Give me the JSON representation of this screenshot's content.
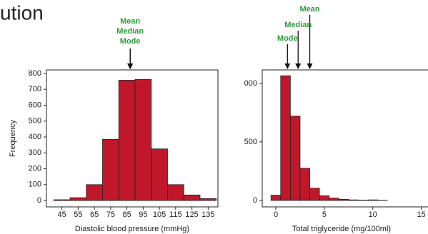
{
  "title": "ution",
  "chart_data": [
    {
      "type": "histogram",
      "bins": [
        40,
        50,
        60,
        70,
        80,
        90,
        100,
        110,
        120,
        130,
        140
      ],
      "values": [
        5,
        18,
        100,
        385,
        757,
        762,
        325,
        100,
        35,
        12
      ],
      "color": "#c0182a",
      "xlabel": "Diastolic blood pressure (mmHg)",
      "ylabel": "Frequency",
      "xlim": [
        35.5,
        141
      ],
      "ylim": [
        -40,
        822
      ],
      "xticks": [
        45,
        55,
        65,
        75,
        85,
        95,
        105,
        115,
        125,
        135
      ],
      "yticks": [
        0,
        100,
        200,
        300,
        400,
        500,
        600,
        700,
        800
      ],
      "annotations": [
        {
          "text": "Mean",
          "x": 87
        },
        {
          "text": "Median",
          "x": 87
        },
        {
          "text": "Mode",
          "x": 87
        }
      ]
    },
    {
      "type": "histogram",
      "bins": [
        -0.5,
        0.5,
        1.5,
        2.5,
        3.5,
        4.5,
        5.5,
        6.5,
        7.5,
        8.5,
        9.5,
        10.5,
        11.5
      ],
      "values": [
        45,
        1065,
        720,
        275,
        105,
        40,
        20,
        10,
        5,
        3,
        5,
        2
      ],
      "color": "#c0182a",
      "xlabel": "Total triglyceride (mg/100ml)",
      "xlim": [
        -1.4,
        16.5
      ],
      "ylim": [
        -55,
        1115
      ],
      "xticks": [
        0,
        5,
        10,
        15
      ],
      "yticks": [
        0,
        500,
        {
          "value": 1000,
          "label": "000"
        }
      ],
      "annotations": [
        {
          "text": "Mean",
          "x": 3.5
        },
        {
          "text": "Median",
          "x": 2.3
        },
        {
          "text": "Mode",
          "x": 1.2
        }
      ]
    }
  ]
}
